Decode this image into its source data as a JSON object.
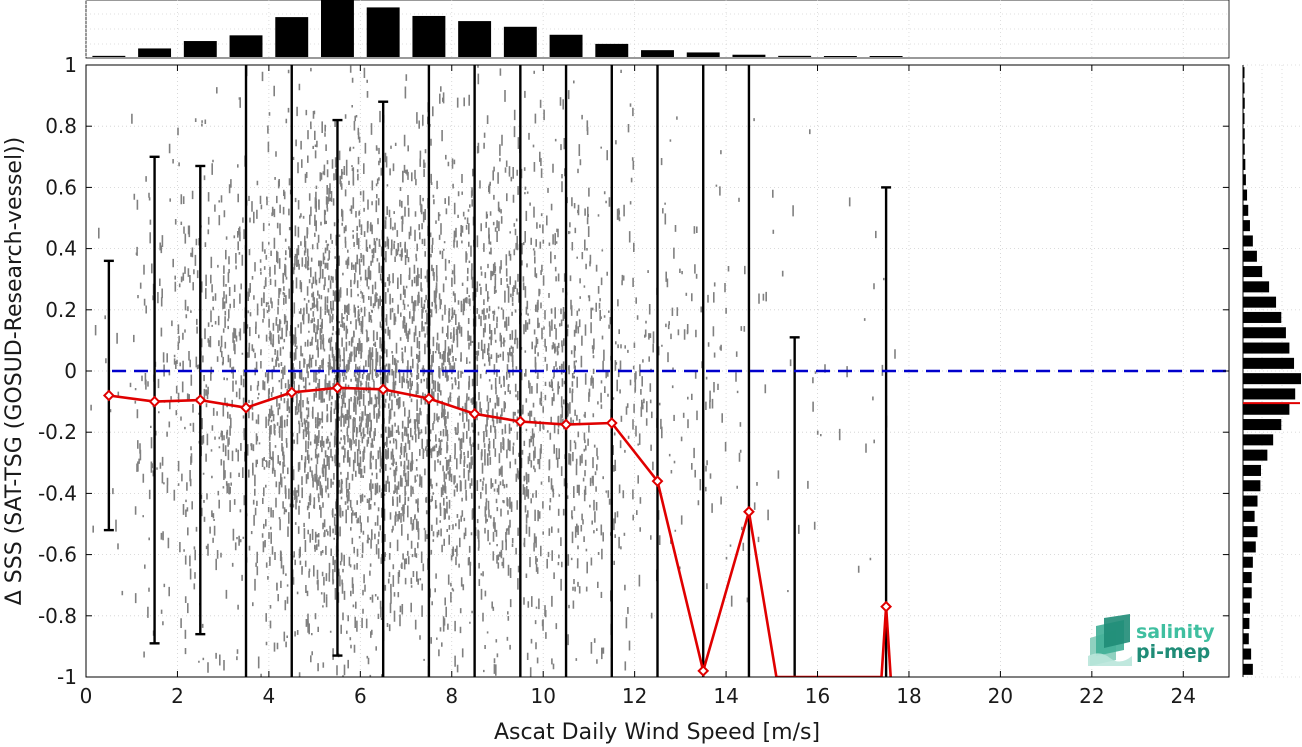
{
  "chart_data": {
    "type": "scatter",
    "xlabel": "Ascat Daily Wind Speed [m/s]",
    "ylabel": "Δ SSS (SAT-TSG (GOSUD-Research-vessel))",
    "xlim": [
      0,
      25
    ],
    "ylim": [
      -1,
      1
    ],
    "xticks": [
      "0",
      "2",
      "4",
      "6",
      "8",
      "10",
      "12",
      "14",
      "16",
      "18",
      "20",
      "22",
      "24"
    ],
    "yticks": [
      "-1",
      "-0.8",
      "-0.6",
      "-0.4",
      "-0.2",
      "0",
      "0.2",
      "0.4",
      "0.6",
      "0.8",
      "1"
    ],
    "grid": true,
    "reference_line": {
      "y": 0,
      "style": "dashed",
      "color": "#0000cc"
    },
    "bin_centers": [
      0.5,
      1.5,
      2.5,
      3.5,
      4.5,
      5.5,
      6.5,
      7.5,
      8.5,
      9.5,
      10.5,
      11.5,
      12.5,
      13.5,
      14.5,
      15.5,
      17.5
    ],
    "mean_line": {
      "color": "#e00000",
      "x": [
        0.5,
        1.5,
        2.5,
        3.5,
        4.5,
        5.5,
        6.5,
        7.5,
        8.5,
        9.5,
        10.5,
        11.5,
        12.5,
        13.5,
        14.5,
        15.1,
        17.4,
        17.5,
        17.6
      ],
      "y": [
        -0.08,
        -0.1,
        -0.095,
        -0.12,
        -0.07,
        -0.055,
        -0.06,
        -0.09,
        -0.14,
        -0.165,
        -0.175,
        -0.17,
        -0.36,
        -0.98,
        -0.46,
        -1.0,
        -1.0,
        -0.77,
        -1.0
      ],
      "markers_x": [
        0.5,
        1.5,
        2.5,
        3.5,
        4.5,
        5.5,
        6.5,
        7.5,
        8.5,
        9.5,
        10.5,
        11.5,
        12.5,
        13.5,
        14.5,
        17.5
      ],
      "markers_y": [
        -0.08,
        -0.1,
        -0.095,
        -0.12,
        -0.07,
        -0.055,
        -0.06,
        -0.09,
        -0.14,
        -0.165,
        -0.175,
        -0.17,
        -0.36,
        -0.98,
        -0.46,
        -0.77
      ]
    },
    "error_bars": [
      {
        "x": 0.5,
        "low": -0.52,
        "high": 0.36
      },
      {
        "x": 1.5,
        "low": -0.89,
        "high": 0.7
      },
      {
        "x": 2.5,
        "low": -0.86,
        "high": 0.67
      },
      {
        "x": 3.5,
        "low": -1.0,
        "high": 1.0
      },
      {
        "x": 4.5,
        "low": -1.0,
        "high": 1.0
      },
      {
        "x": 5.5,
        "low": -0.93,
        "high": 0.82
      },
      {
        "x": 6.5,
        "low": -1.0,
        "high": 0.88
      },
      {
        "x": 7.5,
        "low": -1.0,
        "high": 1.0
      },
      {
        "x": 8.5,
        "low": -1.0,
        "high": 1.0
      },
      {
        "x": 9.5,
        "low": -1.0,
        "high": 1.0
      },
      {
        "x": 10.5,
        "low": -1.0,
        "high": 1.0
      },
      {
        "x": 11.5,
        "low": -1.0,
        "high": 1.0
      },
      {
        "x": 12.5,
        "low": -1.0,
        "high": 1.0
      },
      {
        "x": 13.5,
        "low": -1.0,
        "high": 1.0
      },
      {
        "x": 14.5,
        "low": -1.0,
        "high": 1.0
      },
      {
        "x": 15.5,
        "low": -1.0,
        "high": 0.11
      },
      {
        "x": 17.5,
        "low": -1.0,
        "high": 0.6
      }
    ],
    "top_histogram": {
      "bin_centers": [
        0.5,
        1.5,
        2.5,
        3.5,
        4.5,
        5.5,
        6.5,
        7.5,
        8.5,
        9.5,
        10.5,
        11.5,
        12.5,
        13.5,
        14.5,
        15.5,
        16.5,
        17.5
      ],
      "relative_counts": [
        0.02,
        0.15,
        0.28,
        0.38,
        0.7,
        1.0,
        0.87,
        0.72,
        0.63,
        0.53,
        0.39,
        0.23,
        0.12,
        0.08,
        0.04,
        0.02,
        0.01,
        0.015
      ]
    },
    "right_histogram": {
      "bin_centers": [
        0.975,
        0.925,
        0.875,
        0.825,
        0.775,
        0.725,
        0.675,
        0.625,
        0.575,
        0.525,
        0.475,
        0.425,
        0.375,
        0.325,
        0.275,
        0.225,
        0.175,
        0.125,
        0.075,
        0.025,
        -0.025,
        -0.075,
        -0.125,
        -0.175,
        -0.225,
        -0.275,
        -0.325,
        -0.375,
        -0.425,
        -0.475,
        -0.525,
        -0.575,
        -0.625,
        -0.675,
        -0.725,
        -0.775,
        -0.825,
        -0.875,
        -0.925,
        -0.975
      ],
      "relative_counts": [
        0.02,
        0.02,
        0.03,
        0.02,
        0.03,
        0.03,
        0.04,
        0.05,
        0.07,
        0.09,
        0.12,
        0.17,
        0.24,
        0.33,
        0.45,
        0.57,
        0.66,
        0.74,
        0.8,
        0.88,
        1.0,
        0.9,
        0.8,
        0.66,
        0.52,
        0.42,
        0.31,
        0.3,
        0.25,
        0.2,
        0.25,
        0.22,
        0.17,
        0.15,
        0.15,
        0.12,
        0.11,
        0.1,
        0.14,
        0.17
      ],
      "mean_marker_y": -0.105
    },
    "scatter_color": "#808080",
    "logo": {
      "line1": "salinity",
      "line2": "pi-mep"
    }
  }
}
